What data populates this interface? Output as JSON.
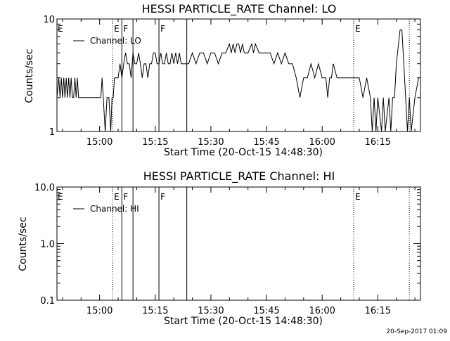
{
  "chart_data": [
    {
      "type": "line",
      "title": "HESSI PARTICLE_RATE Channel: LO",
      "xlabel": "Start Time (20-Oct-15 14:48:30)",
      "ylabel": "Counts/sec",
      "yscale": "log",
      "ylim": [
        1,
        10
      ],
      "xlim": [
        "14:48:30",
        "16:26:30"
      ],
      "x_ticks": [
        "15:00",
        "15:15",
        "15:30",
        "15:45",
        "16:00",
        "16:15"
      ],
      "y_ticks": [
        "1",
        "10"
      ],
      "legend": "upper-left",
      "series": [
        {
          "name": "Channel: LO",
          "color": "#000000",
          "points": [
            [
              "14:48:30",
              2
            ],
            [
              "14:49:00",
              3
            ],
            [
              "14:49:20",
              2
            ],
            [
              "14:49:40",
              3
            ],
            [
              "14:50:00",
              2
            ],
            [
              "14:50:20",
              3
            ],
            [
              "14:50:40",
              2
            ],
            [
              "14:51:00",
              3
            ],
            [
              "14:51:20",
              2
            ],
            [
              "14:51:40",
              3
            ],
            [
              "14:52:00",
              2
            ],
            [
              "14:52:20",
              3
            ],
            [
              "14:52:40",
              2
            ],
            [
              "14:53:00",
              2
            ],
            [
              "14:53:20",
              3
            ],
            [
              "14:53:40",
              2
            ],
            [
              "14:54:00",
              3
            ],
            [
              "14:54:20",
              2
            ],
            [
              "14:55:00",
              2
            ],
            [
              "14:56:00",
              2
            ],
            [
              "14:57:00",
              2
            ],
            [
              "14:58:00",
              2
            ],
            [
              "14:59:00",
              2
            ],
            [
              "15:00:00",
              2
            ],
            [
              "15:00:20",
              2
            ],
            [
              "15:00:40",
              3
            ],
            [
              "15:01:00",
              2
            ],
            [
              "15:01:30",
              1
            ],
            [
              "15:02:00",
              2
            ],
            [
              "15:02:30",
              2
            ],
            [
              "15:03:00",
              1
            ],
            [
              "15:03:20",
              2
            ],
            [
              "15:03:40",
              2
            ],
            [
              "15:04:00",
              3
            ],
            [
              "15:04:30",
              3
            ],
            [
              "15:05:00",
              3
            ],
            [
              "15:05:30",
              4
            ],
            [
              "15:06:00",
              3
            ],
            [
              "15:06:30",
              4
            ],
            [
              "15:07:00",
              5
            ],
            [
              "15:07:30",
              4
            ],
            [
              "15:08:00",
              4
            ],
            [
              "15:08:30",
              3
            ],
            [
              "15:09:00",
              5
            ],
            [
              "15:09:30",
              4
            ],
            [
              "15:10:00",
              4
            ],
            [
              "15:10:30",
              5
            ],
            [
              "15:11:00",
              4
            ],
            [
              "15:11:30",
              3
            ],
            [
              "15:12:00",
              4
            ],
            [
              "15:12:30",
              4
            ],
            [
              "15:13:00",
              3
            ],
            [
              "15:13:30",
              4
            ],
            [
              "15:14:00",
              4
            ],
            [
              "15:14:30",
              5
            ],
            [
              "15:15:00",
              5
            ],
            [
              "15:15:30",
              4
            ],
            [
              "15:16:00",
              4
            ],
            [
              "15:16:30",
              5
            ],
            [
              "15:17:00",
              4
            ],
            [
              "15:17:30",
              4
            ],
            [
              "15:18:00",
              5
            ],
            [
              "15:18:30",
              4
            ],
            [
              "15:19:00",
              4
            ],
            [
              "15:19:30",
              5
            ],
            [
              "15:20:00",
              4
            ],
            [
              "15:20:30",
              5
            ],
            [
              "15:21:00",
              4
            ],
            [
              "15:21:30",
              5
            ],
            [
              "15:22:00",
              4
            ],
            [
              "15:23:00",
              4
            ],
            [
              "15:24:00",
              4
            ],
            [
              "15:25:00",
              5
            ],
            [
              "15:26:00",
              4
            ],
            [
              "15:27:00",
              5
            ],
            [
              "15:28:00",
              5
            ],
            [
              "15:29:00",
              4
            ],
            [
              "15:30:00",
              5
            ],
            [
              "15:31:00",
              5
            ],
            [
              "15:32:00",
              4
            ],
            [
              "15:33:00",
              5
            ],
            [
              "15:34:00",
              5
            ],
            [
              "15:35:00",
              6
            ],
            [
              "15:35:30",
              5
            ],
            [
              "15:36:00",
              6
            ],
            [
              "15:36:30",
              5
            ],
            [
              "15:37:00",
              6
            ],
            [
              "15:37:30",
              6
            ],
            [
              "15:38:00",
              5
            ],
            [
              "15:38:30",
              6
            ],
            [
              "15:39:00",
              5
            ],
            [
              "15:40:00",
              5
            ],
            [
              "15:41:00",
              6
            ],
            [
              "15:41:30",
              5
            ],
            [
              "15:42:00",
              6
            ],
            [
              "15:43:00",
              5
            ],
            [
              "15:44:00",
              5
            ],
            [
              "15:45:00",
              5
            ],
            [
              "15:46:00",
              5
            ],
            [
              "15:47:00",
              4
            ],
            [
              "15:48:00",
              5
            ],
            [
              "15:49:00",
              4
            ],
            [
              "15:50:00",
              5
            ],
            [
              "15:51:00",
              4
            ],
            [
              "15:52:00",
              4
            ],
            [
              "15:53:00",
              3
            ],
            [
              "15:54:00",
              2
            ],
            [
              "15:55:00",
              3
            ],
            [
              "15:56:00",
              3
            ],
            [
              "15:57:00",
              4
            ],
            [
              "15:58:00",
              3
            ],
            [
              "15:59:00",
              4
            ],
            [
              "16:00:00",
              3
            ],
            [
              "16:01:00",
              3
            ],
            [
              "16:01:30",
              2
            ],
            [
              "16:02:00",
              3
            ],
            [
              "16:02:30",
              3
            ],
            [
              "16:03:00",
              4
            ],
            [
              "16:04:00",
              3
            ],
            [
              "16:05:00",
              3
            ],
            [
              "16:06:00",
              3
            ],
            [
              "16:07:00",
              3
            ],
            [
              "16:08:00",
              3
            ],
            [
              "16:09:00",
              3
            ],
            [
              "16:10:00",
              3
            ],
            [
              "16:11:00",
              2
            ],
            [
              "16:12:00",
              3
            ],
            [
              "16:13:00",
              2
            ],
            [
              "16:13:30",
              1
            ],
            [
              "16:14:00",
              2
            ],
            [
              "16:14:30",
              1
            ],
            [
              "16:15:00",
              2
            ],
            [
              "16:16:00",
              1
            ],
            [
              "16:16:30",
              2
            ],
            [
              "16:17:00",
              1
            ],
            [
              "16:18:00",
              2
            ],
            [
              "16:18:30",
              1
            ],
            [
              "16:19:00",
              2
            ],
            [
              "16:19:30",
              2
            ],
            [
              "16:20:00",
              4
            ],
            [
              "16:21:00",
              8
            ],
            [
              "16:21:30",
              8
            ],
            [
              "16:22:00",
              4
            ],
            [
              "16:23:00",
              1
            ],
            [
              "16:23:30",
              2
            ],
            [
              "16:24:00",
              1
            ],
            [
              "16:25:00",
              2
            ],
            [
              "16:26:00",
              3
            ]
          ]
        }
      ],
      "events": [
        {
          "time": "15:03:30",
          "label": "E",
          "style": "dotted"
        },
        {
          "time": "15:06:00",
          "label": "F",
          "style": "solid"
        },
        {
          "time": "15:09:00",
          "label": "",
          "style": "solid"
        },
        {
          "time": "15:16:00",
          "label": "F",
          "style": "solid"
        },
        {
          "time": "15:23:30",
          "label": "",
          "style": "solid"
        },
        {
          "time": "16:08:30",
          "label": "E",
          "style": "dotted"
        },
        {
          "time": "16:23:30",
          "label": "",
          "style": "dotted"
        }
      ],
      "edge_labels": [
        "E"
      ]
    },
    {
      "type": "line",
      "title": "HESSI PARTICLE_RATE Channel: HI",
      "xlabel": "Start Time (20-Oct-15 14:48:30)",
      "ylabel": "Counts/sec",
      "yscale": "log",
      "ylim": [
        0.1,
        10
      ],
      "xlim": [
        "14:48:30",
        "16:26:30"
      ],
      "x_ticks": [
        "15:00",
        "15:15",
        "15:30",
        "15:45",
        "16:00",
        "16:15"
      ],
      "y_ticks": [
        "0.1",
        "1.0",
        "10.0"
      ],
      "legend": "upper-left",
      "series": [
        {
          "name": "Channel: HI",
          "color": "#000000",
          "points": []
        }
      ],
      "events": [
        {
          "time": "15:03:30",
          "label": "E",
          "style": "dotted"
        },
        {
          "time": "15:06:00",
          "label": "F",
          "style": "solid"
        },
        {
          "time": "15:09:00",
          "label": "",
          "style": "solid"
        },
        {
          "time": "15:16:00",
          "label": "F",
          "style": "solid"
        },
        {
          "time": "15:23:30",
          "label": "",
          "style": "solid"
        },
        {
          "time": "16:08:30",
          "label": "E",
          "style": "dotted"
        },
        {
          "time": "16:23:30",
          "label": "",
          "style": "dotted"
        }
      ],
      "edge_labels": [
        "E"
      ]
    }
  ],
  "footer": {
    "timestamp": "20-Sep-2017 01:09"
  }
}
